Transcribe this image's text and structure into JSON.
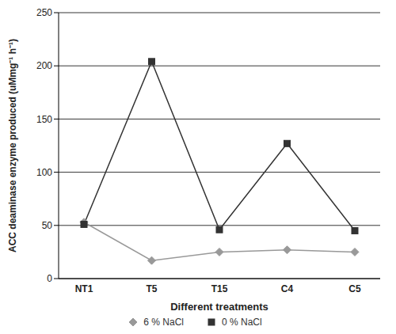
{
  "chart_data": {
    "type": "line",
    "x_label": "Different treatments",
    "y_label": "ACC deaminase enzyme produced (uMmg⁻¹ h⁻¹)",
    "categories": [
      "NT1",
      "T5",
      "T15",
      "C4",
      "C5"
    ],
    "series": [
      {
        "name": "6 % NaCl",
        "color": "#999999",
        "marker": "diamond",
        "values": [
          53,
          17,
          25,
          27,
          25
        ]
      },
      {
        "name": "0 % NaCl",
        "color": "#333333",
        "marker": "square",
        "values": [
          51,
          204,
          46,
          127,
          45
        ]
      }
    ],
    "ylim": [
      0,
      250
    ],
    "yticks": [
      0,
      50,
      100,
      150,
      200,
      250
    ],
    "grid": true,
    "legend": "bottom"
  }
}
